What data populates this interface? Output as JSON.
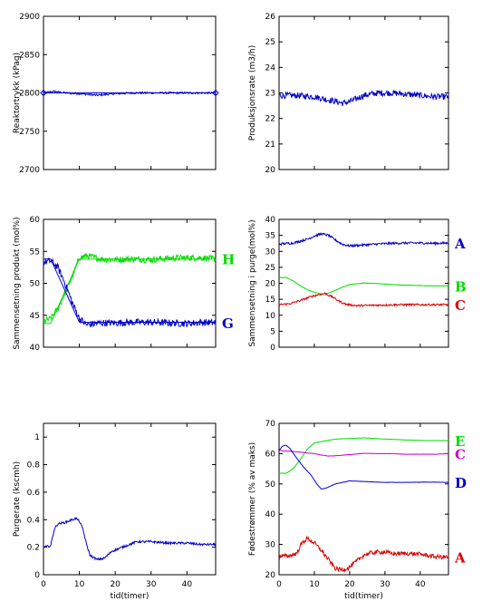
{
  "chart_data": [
    {
      "type": "line",
      "ylabel": "Reaktortrykk (kPag)",
      "xlabel": "",
      "xlim": [
        0,
        48
      ],
      "ylim": [
        2700,
        2900
      ],
      "yticks": [
        2700,
        2750,
        2800,
        2850,
        2900
      ],
      "xticks": [
        0,
        10,
        20,
        30,
        40
      ],
      "show_xtick_labels": false,
      "series": [
        {
          "name": "",
          "color": "#0000cc",
          "noise": 1.2,
          "markers": true,
          "points": [
            [
              0,
              2800
            ],
            [
              3,
              2802
            ],
            [
              6,
              2800
            ],
            [
              10,
              2799
            ],
            [
              15,
              2797
            ],
            [
              20,
              2799
            ],
            [
              25,
              2800
            ],
            [
              30,
              2800
            ],
            [
              35,
              2800
            ],
            [
              40,
              2800
            ],
            [
              45,
              2800
            ],
            [
              48,
              2800
            ]
          ]
        },
        {
          "name": "",
          "color": "#0000cc",
          "noise": 0,
          "markers": false,
          "points": [
            [
              0,
              2800
            ],
            [
              48,
              2800
            ]
          ]
        }
      ]
    },
    {
      "type": "line",
      "ylabel": "Produksjonsrate (m3/h)",
      "xlabel": "",
      "xlim": [
        0,
        48
      ],
      "ylim": [
        20,
        26
      ],
      "yticks": [
        20,
        21,
        22,
        23,
        24,
        25,
        26
      ],
      "xticks": [
        0,
        10,
        20,
        30,
        40
      ],
      "show_xtick_labels": false,
      "series": [
        {
          "name": "",
          "color": "#0000cc",
          "noise": 0.12,
          "points": [
            [
              0,
              22.9
            ],
            [
              5,
              22.9
            ],
            [
              10,
              22.85
            ],
            [
              15,
              22.7
            ],
            [
              18,
              22.6
            ],
            [
              20,
              22.65
            ],
            [
              24,
              22.9
            ],
            [
              28,
              23.0
            ],
            [
              32,
              23.0
            ],
            [
              36,
              22.95
            ],
            [
              40,
              22.9
            ],
            [
              44,
              22.85
            ],
            [
              48,
              22.85
            ]
          ]
        }
      ]
    },
    {
      "type": "line",
      "ylabel": "Sammensetning produkt (mol%)",
      "xlabel": "",
      "xlim": [
        0,
        48
      ],
      "ylim": [
        40,
        60
      ],
      "yticks": [
        40,
        45,
        50,
        55,
        60
      ],
      "xticks": [
        0,
        10,
        20,
        30,
        40
      ],
      "show_xtick_labels": false,
      "series": [
        {
          "name": "H",
          "color": "#00dd00",
          "noise": 0.5,
          "points": [
            [
              0,
              44
            ],
            [
              2,
              44.5
            ],
            [
              4,
              46
            ],
            [
              6,
              48.5
            ],
            [
              8,
              51
            ],
            [
              10,
              54
            ],
            [
              12,
              54.3
            ],
            [
              16,
              53.8
            ],
            [
              20,
              53.7
            ],
            [
              25,
              53.8
            ],
            [
              30,
              53.7
            ],
            [
              35,
              53.9
            ],
            [
              40,
              54
            ],
            [
              44,
              54
            ],
            [
              48,
              53.8
            ]
          ]
        },
        {
          "name": "",
          "color": "#00dd00",
          "noise": 0,
          "points": [
            [
              0,
              43.7
            ],
            [
              2,
              43.7
            ],
            [
              10,
              53.8
            ],
            [
              48,
              53.8
            ]
          ]
        },
        {
          "name": "G",
          "color": "#0000cc",
          "noise": 0.55,
          "points": [
            [
              0,
              53.3
            ],
            [
              2,
              53.5
            ],
            [
              4,
              52.5
            ],
            [
              6,
              50
            ],
            [
              8,
              47
            ],
            [
              10,
              44.5
            ],
            [
              12,
              43.5
            ],
            [
              16,
              43.8
            ],
            [
              20,
              43.8
            ],
            [
              25,
              43.9
            ],
            [
              30,
              43.9
            ],
            [
              35,
              43.8
            ],
            [
              40,
              43.7
            ],
            [
              44,
              43.9
            ],
            [
              48,
              43.8
            ]
          ]
        },
        {
          "name": "",
          "color": "#0000cc",
          "noise": 0,
          "points": [
            [
              0,
              53.8
            ],
            [
              2,
              53.8
            ],
            [
              10,
              43.9
            ],
            [
              48,
              43.9
            ]
          ]
        }
      ]
    },
    {
      "type": "line",
      "ylabel": "Sammensetning i purge(mol%)",
      "xlabel": "",
      "xlim": [
        0,
        48
      ],
      "ylim": [
        0,
        40
      ],
      "yticks": [
        0,
        5,
        10,
        15,
        20,
        25,
        30,
        35,
        40
      ],
      "xticks": [
        0,
        10,
        20,
        30,
        40
      ],
      "show_xtick_labels": false,
      "series": [
        {
          "name": "A",
          "color": "#0000cc",
          "noise": 0.35,
          "points": [
            [
              0,
              32.3
            ],
            [
              4,
              32.6
            ],
            [
              8,
              33.8
            ],
            [
              10,
              34.8
            ],
            [
              12,
              35.5
            ],
            [
              14,
              35
            ],
            [
              16,
              33.5
            ],
            [
              18,
              32.2
            ],
            [
              20,
              31.7
            ],
            [
              24,
              32
            ],
            [
              28,
              32.3
            ],
            [
              32,
              32.5
            ],
            [
              36,
              32.6
            ],
            [
              40,
              32.6
            ],
            [
              44,
              32.5
            ],
            [
              48,
              32.6
            ]
          ]
        },
        {
          "name": "B",
          "color": "#00dd00",
          "noise": 0.06,
          "points": [
            [
              0,
              21.8
            ],
            [
              2,
              21.8
            ],
            [
              4,
              20.8
            ],
            [
              6,
              19.2
            ],
            [
              8,
              18
            ],
            [
              10,
              17.2
            ],
            [
              12,
              16.6
            ],
            [
              14,
              16.9
            ],
            [
              16,
              17.8
            ],
            [
              18,
              18.8
            ],
            [
              20,
              19.6
            ],
            [
              24,
              20.1
            ],
            [
              28,
              19.9
            ],
            [
              32,
              19.6
            ],
            [
              36,
              19.4
            ],
            [
              40,
              19.3
            ],
            [
              44,
              19.2
            ],
            [
              48,
              19.2
            ]
          ]
        },
        {
          "name": "C",
          "color": "#dd0000",
          "noise": 0.3,
          "points": [
            [
              0,
              13.3
            ],
            [
              3,
              13.6
            ],
            [
              6,
              14.6
            ],
            [
              9,
              15.8
            ],
            [
              11,
              16.4
            ],
            [
              13,
              16.8
            ],
            [
              15,
              15.8
            ],
            [
              17,
              14.4
            ],
            [
              19,
              13.4
            ],
            [
              22,
              13
            ],
            [
              26,
              13.1
            ],
            [
              30,
              13.2
            ],
            [
              34,
              13.3
            ],
            [
              38,
              13.3
            ],
            [
              42,
              13.3
            ],
            [
              48,
              13.3
            ]
          ]
        }
      ]
    },
    {
      "type": "line",
      "ylabel": "Purgerate (kscmh)",
      "xlabel": "tid(timer)",
      "xlim": [
        0,
        48
      ],
      "ylim": [
        0,
        1.1
      ],
      "yticks": [
        0,
        0.2,
        0.4,
        0.6,
        0.8,
        1
      ],
      "ytick_labels": [
        "0",
        "0.2",
        "0.4",
        "0.6",
        "0.8",
        "1"
      ],
      "xticks": [
        0,
        10,
        20,
        30,
        40
      ],
      "show_xtick_labels": true,
      "series": [
        {
          "name": "",
          "color": "#0000cc",
          "noise": 0.008,
          "points": [
            [
              0,
              0.2
            ],
            [
              2,
              0.21
            ],
            [
              3,
              0.33
            ],
            [
              4,
              0.37
            ],
            [
              6,
              0.38
            ],
            [
              8,
              0.4
            ],
            [
              9,
              0.41
            ],
            [
              10,
              0.39
            ],
            [
              11,
              0.33
            ],
            [
              12,
              0.22
            ],
            [
              13,
              0.14
            ],
            [
              15,
              0.11
            ],
            [
              17,
              0.12
            ],
            [
              19,
              0.17
            ],
            [
              22,
              0.2
            ],
            [
              26,
              0.24
            ],
            [
              30,
              0.24
            ],
            [
              35,
              0.23
            ],
            [
              40,
              0.23
            ],
            [
              44,
              0.22
            ],
            [
              48,
              0.22
            ]
          ]
        }
      ]
    },
    {
      "type": "line",
      "ylabel": "Fødestrømmer (% av maks)",
      "xlabel": "tid(timer)",
      "xlim": [
        0,
        48
      ],
      "ylim": [
        20,
        70
      ],
      "yticks": [
        20,
        30,
        40,
        50,
        60,
        70
      ],
      "xticks": [
        0,
        10,
        20,
        30,
        40
      ],
      "show_xtick_labels": true,
      "series": [
        {
          "name": "E",
          "color": "#00dd00",
          "noise": 0.05,
          "points": [
            [
              0,
              53.5
            ],
            [
              2,
              53.5
            ],
            [
              4,
              55
            ],
            [
              6,
              58
            ],
            [
              8,
              61.5
            ],
            [
              10,
              63.5
            ],
            [
              12,
              64
            ],
            [
              16,
              64.8
            ],
            [
              20,
              65
            ],
            [
              24,
              65.2
            ],
            [
              30,
              64.8
            ],
            [
              36,
              64.5
            ],
            [
              42,
              64.3
            ],
            [
              48,
              64.3
            ]
          ]
        },
        {
          "name": "C",
          "color": "#cc00cc",
          "noise": 0.05,
          "points": [
            [
              0,
              61
            ],
            [
              3,
              60.8
            ],
            [
              6,
              60.5
            ],
            [
              8,
              60.2
            ],
            [
              10,
              60
            ],
            [
              12,
              59.5
            ],
            [
              14,
              59.2
            ],
            [
              16,
              59.3
            ],
            [
              20,
              59.7
            ],
            [
              24,
              60.1
            ],
            [
              28,
              60
            ],
            [
              32,
              60
            ],
            [
              36,
              59.8
            ],
            [
              40,
              59.8
            ],
            [
              44,
              59.8
            ],
            [
              48,
              60
            ]
          ]
        },
        {
          "name": "D",
          "color": "#0000cc",
          "noise": 0.05,
          "points": [
            [
              0,
              61
            ],
            [
              1,
              62.5
            ],
            [
              2,
              62.8
            ],
            [
              3,
              61.8
            ],
            [
              5,
              58.5
            ],
            [
              7,
              55.5
            ],
            [
              9,
              53
            ],
            [
              11,
              49.5
            ],
            [
              12,
              48.3
            ],
            [
              13,
              48.5
            ],
            [
              16,
              50
            ],
            [
              20,
              51
            ],
            [
              24,
              50.8
            ],
            [
              30,
              50.5
            ],
            [
              36,
              50.5
            ],
            [
              42,
              50.6
            ],
            [
              48,
              50.5
            ]
          ]
        },
        {
          "name": "A",
          "color": "#dd0000",
          "noise": 0.7,
          "points": [
            [
              0,
              26
            ],
            [
              3,
              26.3
            ],
            [
              5,
              27
            ],
            [
              6,
              29.5
            ],
            [
              7,
              31
            ],
            [
              8,
              32
            ],
            [
              10,
              30.5
            ],
            [
              12,
              28
            ],
            [
              14,
              25
            ],
            [
              16,
              22
            ],
            [
              18,
              21.6
            ],
            [
              20,
              22.5
            ],
            [
              22,
              24.5
            ],
            [
              24,
              26.5
            ],
            [
              26,
              27.2
            ],
            [
              28,
              27.5
            ],
            [
              30,
              27.5
            ],
            [
              32,
              27
            ],
            [
              36,
              27
            ],
            [
              40,
              26.8
            ],
            [
              44,
              26
            ],
            [
              48,
              25.8
            ]
          ]
        }
      ]
    }
  ]
}
